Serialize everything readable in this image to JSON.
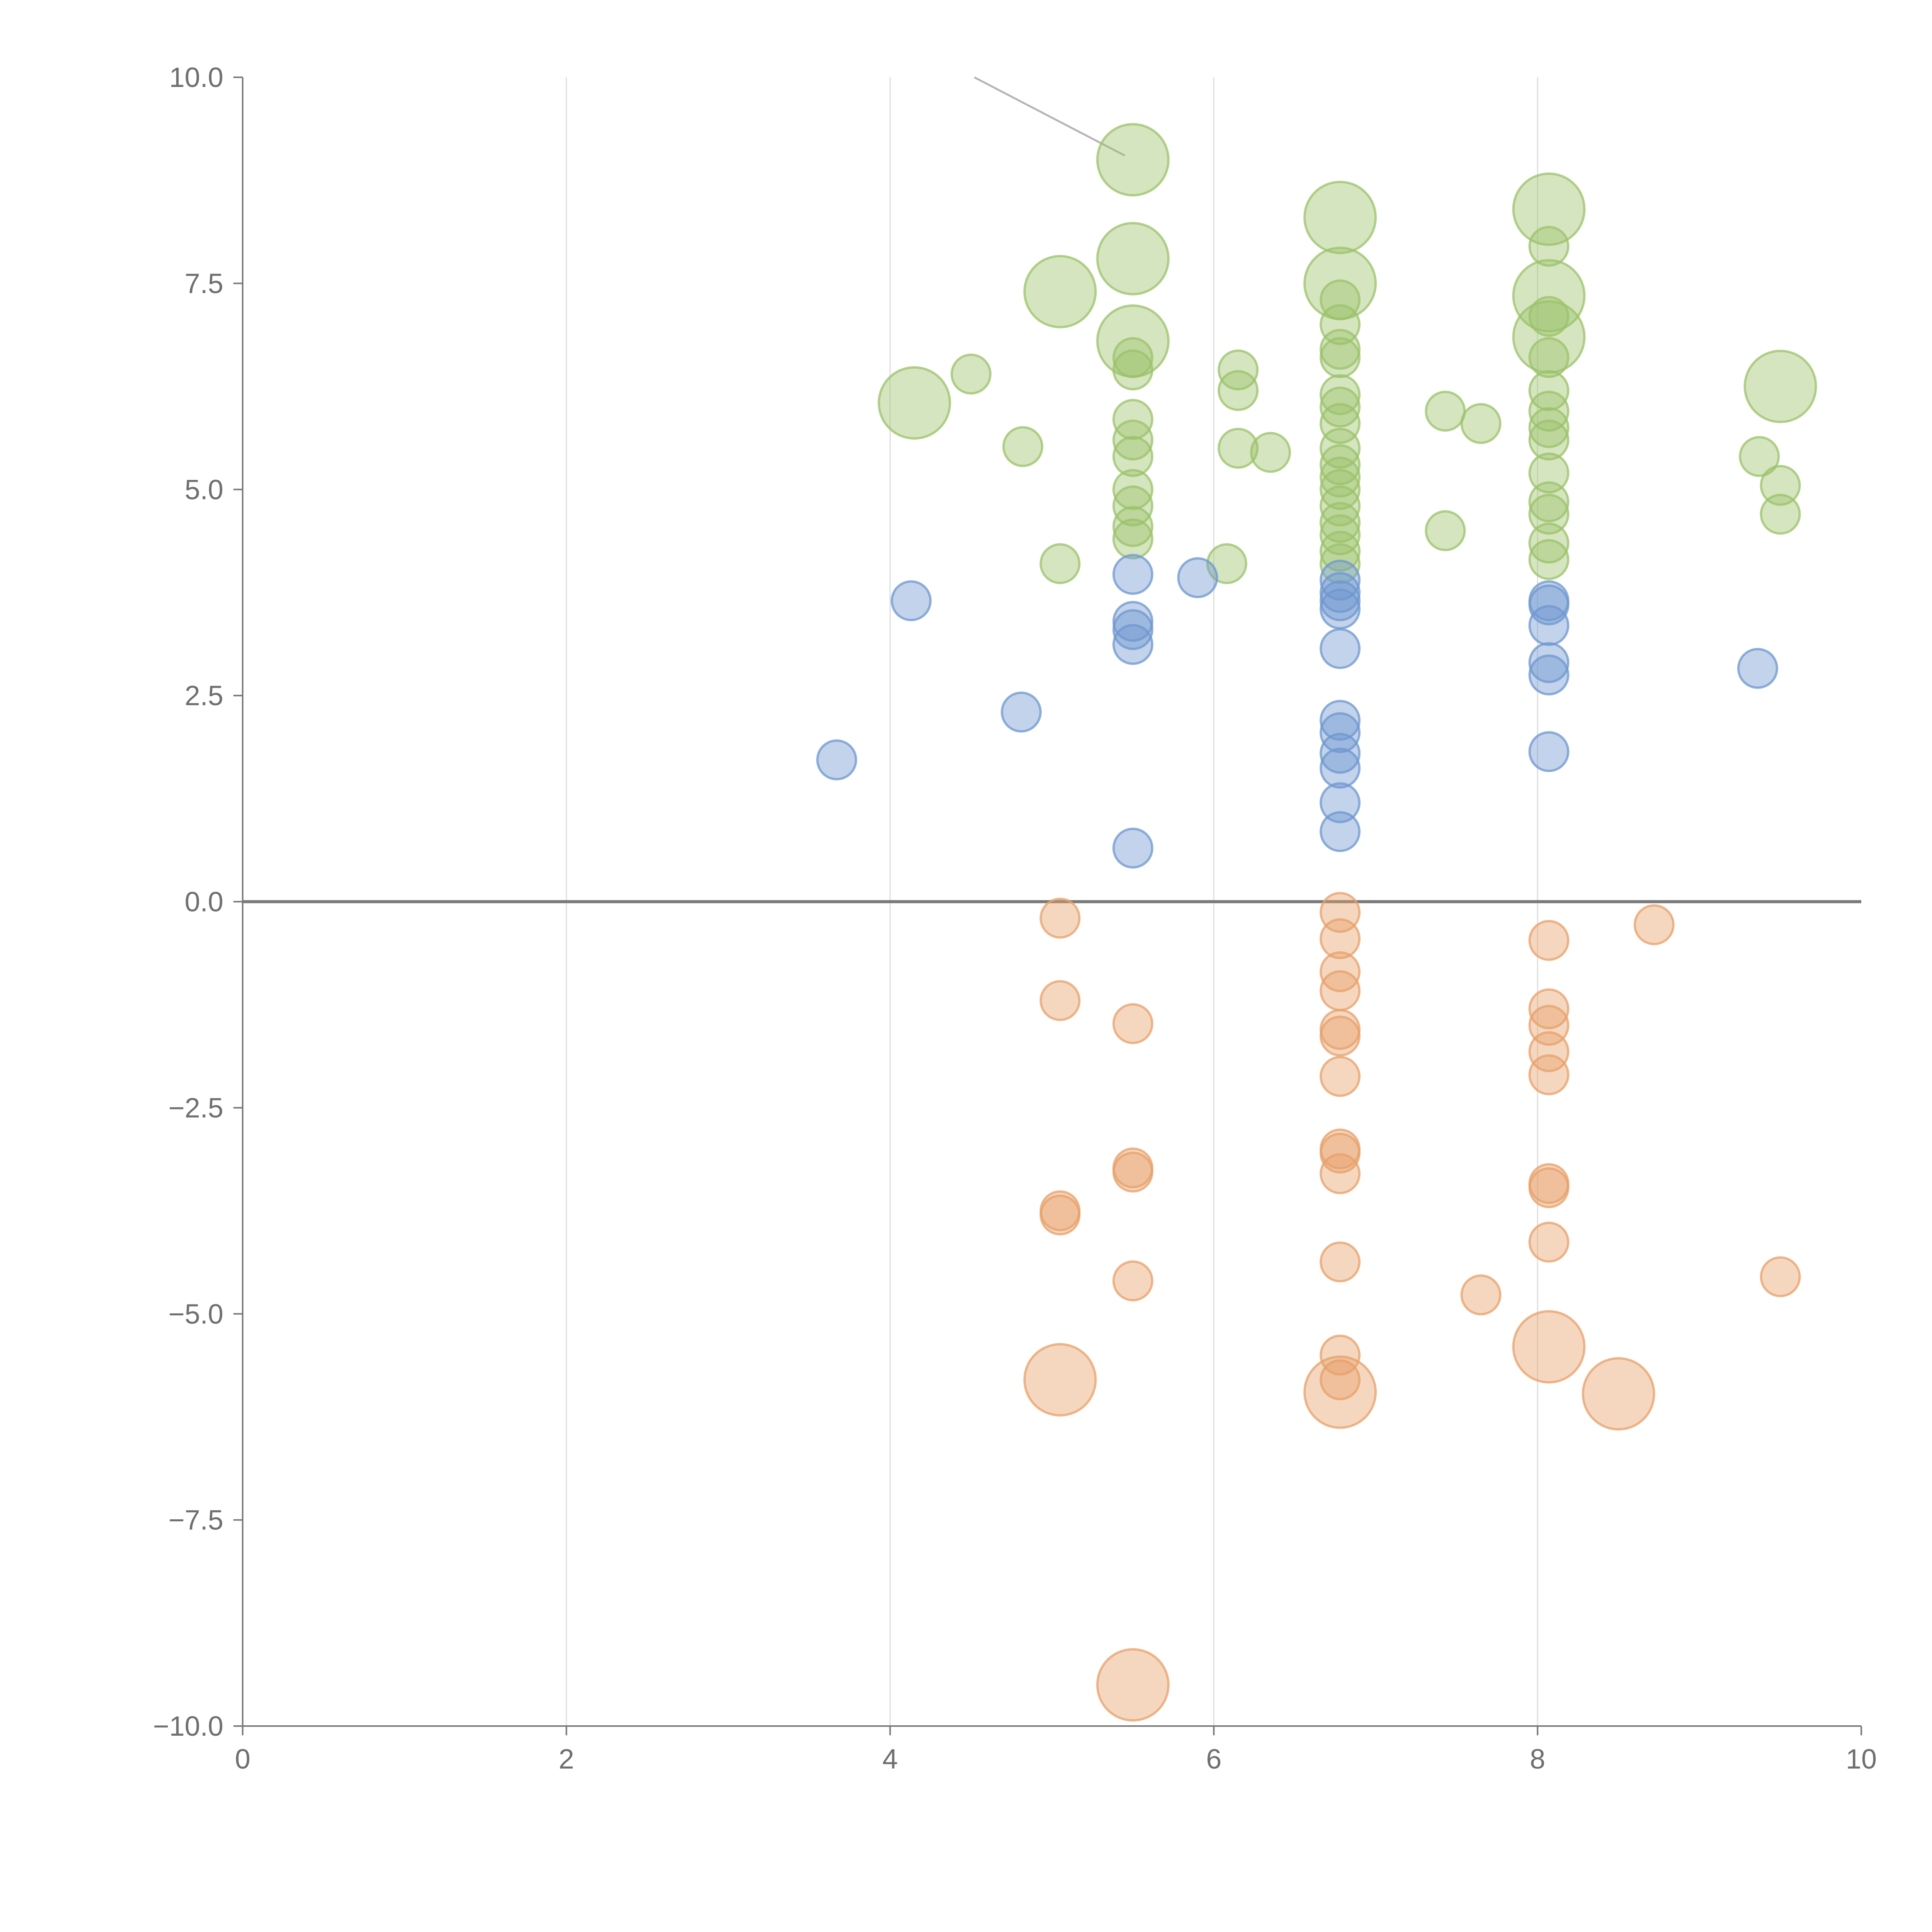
{
  "chart_data": {
    "type": "scatter",
    "title": "",
    "xlabel": "",
    "ylabel": "",
    "xlim": [
      0,
      10
    ],
    "ylim": [
      -10,
      10
    ],
    "x_ticks": [
      "0",
      "2",
      "4",
      "6",
      "8",
      "10"
    ],
    "y_ticks": [
      "10.0",
      "7.5",
      "5.0",
      "2.5",
      "0.0",
      "−2.5",
      "−5.0",
      "−7.5",
      "−10.0"
    ],
    "grid": "vertical lines at x = 2, 4, 6, 8",
    "zero_line": true,
    "colors": {
      "green": "#9bc26a",
      "blue": "#6e97cf",
      "orange": "#e7a06a"
    },
    "series": [
      {
        "color": "green",
        "points": [
          {
            "x": 5.5,
            "y": 9.0,
            "s": 3
          },
          {
            "x": 5.5,
            "y": 7.8,
            "s": 3
          },
          {
            "x": 5.5,
            "y": 6.8,
            "s": 3
          },
          {
            "x": 5.5,
            "y": 6.6,
            "s": 1
          },
          {
            "x": 5.5,
            "y": 6.45,
            "s": 1
          },
          {
            "x": 5.5,
            "y": 5.85,
            "s": 1
          },
          {
            "x": 5.5,
            "y": 5.6,
            "s": 1
          },
          {
            "x": 5.5,
            "y": 5.4,
            "s": 1
          },
          {
            "x": 5.5,
            "y": 5.0,
            "s": 1
          },
          {
            "x": 5.5,
            "y": 4.8,
            "s": 1
          },
          {
            "x": 5.5,
            "y": 4.55,
            "s": 1
          },
          {
            "x": 5.5,
            "y": 4.4,
            "s": 1
          },
          {
            "x": 5.05,
            "y": 7.4,
            "s": 3
          },
          {
            "x": 5.05,
            "y": 4.1,
            "s": 1
          },
          {
            "x": 4.15,
            "y": 6.05,
            "s": 3
          },
          {
            "x": 4.5,
            "y": 6.4,
            "s": 1
          },
          {
            "x": 4.82,
            "y": 5.52,
            "s": 1
          },
          {
            "x": 6.15,
            "y": 6.45,
            "s": 1
          },
          {
            "x": 6.15,
            "y": 6.2,
            "s": 1
          },
          {
            "x": 6.15,
            "y": 5.5,
            "s": 1
          },
          {
            "x": 6.35,
            "y": 5.45,
            "s": 1
          },
          {
            "x": 6.08,
            "y": 4.1,
            "s": 1
          },
          {
            "x": 6.78,
            "y": 8.3,
            "s": 3
          },
          {
            "x": 6.78,
            "y": 7.5,
            "s": 3
          },
          {
            "x": 6.78,
            "y": 7.3,
            "s": 1
          },
          {
            "x": 6.78,
            "y": 7.0,
            "s": 1
          },
          {
            "x": 6.78,
            "y": 6.7,
            "s": 1
          },
          {
            "x": 6.78,
            "y": 6.6,
            "s": 1
          },
          {
            "x": 6.78,
            "y": 6.15,
            "s": 1
          },
          {
            "x": 6.78,
            "y": 6.0,
            "s": 1
          },
          {
            "x": 6.78,
            "y": 5.8,
            "s": 1
          },
          {
            "x": 6.78,
            "y": 5.5,
            "s": 1
          },
          {
            "x": 6.78,
            "y": 5.3,
            "s": 1
          },
          {
            "x": 6.78,
            "y": 5.15,
            "s": 1
          },
          {
            "x": 6.78,
            "y": 5.0,
            "s": 1
          },
          {
            "x": 6.78,
            "y": 4.8,
            "s": 1
          },
          {
            "x": 6.78,
            "y": 4.6,
            "s": 1
          },
          {
            "x": 6.78,
            "y": 4.45,
            "s": 1
          },
          {
            "x": 6.78,
            "y": 4.25,
            "s": 1
          },
          {
            "x": 6.78,
            "y": 4.1,
            "s": 1
          },
          {
            "x": 7.43,
            "y": 5.95,
            "s": 1
          },
          {
            "x": 7.65,
            "y": 5.8,
            "s": 1
          },
          {
            "x": 7.43,
            "y": 4.5,
            "s": 1
          },
          {
            "x": 8.07,
            "y": 8.4,
            "s": 3
          },
          {
            "x": 8.07,
            "y": 7.35,
            "s": 3
          },
          {
            "x": 8.07,
            "y": 6.85,
            "s": 3
          },
          {
            "x": 8.07,
            "y": 7.95,
            "s": 1
          },
          {
            "x": 8.07,
            "y": 7.1,
            "s": 1
          },
          {
            "x": 8.07,
            "y": 6.6,
            "s": 1
          },
          {
            "x": 8.07,
            "y": 6.2,
            "s": 1
          },
          {
            "x": 8.07,
            "y": 5.95,
            "s": 1
          },
          {
            "x": 8.07,
            "y": 5.75,
            "s": 1
          },
          {
            "x": 8.07,
            "y": 5.6,
            "s": 1
          },
          {
            "x": 8.07,
            "y": 5.2,
            "s": 1
          },
          {
            "x": 8.07,
            "y": 4.85,
            "s": 1
          },
          {
            "x": 8.07,
            "y": 4.7,
            "s": 1
          },
          {
            "x": 8.07,
            "y": 4.35,
            "s": 1
          },
          {
            "x": 8.07,
            "y": 4.15,
            "s": 1
          },
          {
            "x": 9.5,
            "y": 6.25,
            "s": 3
          },
          {
            "x": 9.37,
            "y": 5.4,
            "s": 1
          },
          {
            "x": 9.5,
            "y": 5.05,
            "s": 1
          },
          {
            "x": 9.5,
            "y": 4.7,
            "s": 1
          }
        ]
      },
      {
        "color": "blue",
        "points": [
          {
            "x": 3.67,
            "y": 1.72,
            "s": 1
          },
          {
            "x": 4.13,
            "y": 3.65,
            "s": 1
          },
          {
            "x": 4.81,
            "y": 2.3,
            "s": 1
          },
          {
            "x": 5.5,
            "y": 3.97,
            "s": 1
          },
          {
            "x": 5.5,
            "y": 3.4,
            "s": 1
          },
          {
            "x": 5.5,
            "y": 3.3,
            "s": 1
          },
          {
            "x": 5.5,
            "y": 3.12,
            "s": 1
          },
          {
            "x": 5.5,
            "y": 0.65,
            "s": 1
          },
          {
            "x": 5.9,
            "y": 3.93,
            "s": 1
          },
          {
            "x": 6.78,
            "y": 3.9,
            "s": 1
          },
          {
            "x": 6.78,
            "y": 3.75,
            "s": 1
          },
          {
            "x": 6.78,
            "y": 3.65,
            "s": 1
          },
          {
            "x": 6.78,
            "y": 3.55,
            "s": 1
          },
          {
            "x": 6.78,
            "y": 3.07,
            "s": 1
          },
          {
            "x": 6.78,
            "y": 2.2,
            "s": 1
          },
          {
            "x": 6.78,
            "y": 2.05,
            "s": 1
          },
          {
            "x": 6.78,
            "y": 1.8,
            "s": 1
          },
          {
            "x": 6.78,
            "y": 1.62,
            "s": 1
          },
          {
            "x": 6.78,
            "y": 1.2,
            "s": 1
          },
          {
            "x": 6.78,
            "y": 0.85,
            "s": 1
          },
          {
            "x": 8.07,
            "y": 3.65,
            "s": 1
          },
          {
            "x": 8.07,
            "y": 3.6,
            "s": 1
          },
          {
            "x": 8.07,
            "y": 3.35,
            "s": 1
          },
          {
            "x": 8.07,
            "y": 2.9,
            "s": 1
          },
          {
            "x": 8.07,
            "y": 2.75,
            "s": 1
          },
          {
            "x": 8.07,
            "y": 1.82,
            "s": 1
          },
          {
            "x": 9.36,
            "y": 2.83,
            "s": 1
          }
        ]
      },
      {
        "color": "orange",
        "points": [
          {
            "x": 5.05,
            "y": -0.2,
            "s": 1
          },
          {
            "x": 5.05,
            "y": -1.2,
            "s": 1
          },
          {
            "x": 5.05,
            "y": -3.75,
            "s": 1
          },
          {
            "x": 5.05,
            "y": -3.8,
            "s": 1
          },
          {
            "x": 5.05,
            "y": -5.8,
            "s": 3
          },
          {
            "x": 5.5,
            "y": -1.48,
            "s": 1
          },
          {
            "x": 5.5,
            "y": -3.23,
            "s": 1
          },
          {
            "x": 5.5,
            "y": -3.28,
            "s": 1
          },
          {
            "x": 5.5,
            "y": -4.6,
            "s": 1
          },
          {
            "x": 5.5,
            "y": -9.5,
            "s": 3
          },
          {
            "x": 6.78,
            "y": -0.13,
            "s": 1
          },
          {
            "x": 6.78,
            "y": -0.45,
            "s": 1
          },
          {
            "x": 6.78,
            "y": -0.85,
            "s": 1
          },
          {
            "x": 6.78,
            "y": -1.08,
            "s": 1
          },
          {
            "x": 6.78,
            "y": -1.55,
            "s": 1
          },
          {
            "x": 6.78,
            "y": -1.63,
            "s": 1
          },
          {
            "x": 6.78,
            "y": -2.12,
            "s": 1
          },
          {
            "x": 6.78,
            "y": -3.0,
            "s": 1
          },
          {
            "x": 6.78,
            "y": -3.05,
            "s": 1
          },
          {
            "x": 6.78,
            "y": -3.3,
            "s": 1
          },
          {
            "x": 6.78,
            "y": -4.37,
            "s": 1
          },
          {
            "x": 6.78,
            "y": -5.5,
            "s": 1
          },
          {
            "x": 6.78,
            "y": -5.8,
            "s": 1
          },
          {
            "x": 6.78,
            "y": -5.95,
            "s": 3
          },
          {
            "x": 7.65,
            "y": -4.77,
            "s": 1
          },
          {
            "x": 8.72,
            "y": -0.28,
            "s": 1
          },
          {
            "x": 8.07,
            "y": -0.47,
            "s": 1
          },
          {
            "x": 8.07,
            "y": -1.3,
            "s": 1
          },
          {
            "x": 8.07,
            "y": -1.5,
            "s": 1
          },
          {
            "x": 8.07,
            "y": -1.82,
            "s": 1
          },
          {
            "x": 8.07,
            "y": -2.1,
            "s": 1
          },
          {
            "x": 8.07,
            "y": -3.42,
            "s": 1
          },
          {
            "x": 8.07,
            "y": -3.47,
            "s": 1
          },
          {
            "x": 8.07,
            "y": -4.13,
            "s": 1
          },
          {
            "x": 8.07,
            "y": -5.4,
            "s": 3
          },
          {
            "x": 8.5,
            "y": -5.97,
            "s": 3
          },
          {
            "x": 9.5,
            "y": -4.55,
            "s": 1
          }
        ]
      }
    ]
  }
}
